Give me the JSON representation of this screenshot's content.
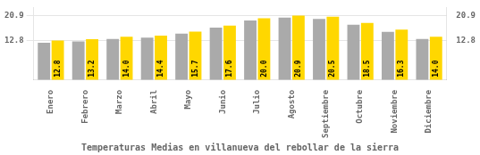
{
  "chart_data": {
    "type": "bar",
    "title": "Temperaturas Medias en villanueva del rebollar de la sierra",
    "categories": [
      "Enero",
      "Febrero",
      "Marzo",
      "Abril",
      "Mayo",
      "Junio",
      "Julio",
      "Agosto",
      "Septiembre",
      "Octubre",
      "Noviembre",
      "Diciembre"
    ],
    "series": [
      {
        "color": "#AAAAAA",
        "values": [
          12.1,
          12.5,
          13.3,
          13.7,
          15.0,
          17.0,
          19.3,
          20.2,
          19.8,
          17.9,
          15.6,
          13.3
        ]
      },
      {
        "color": "#FFD700",
        "values": [
          12.8,
          13.2,
          14.0,
          14.4,
          15.7,
          17.6,
          20.0,
          20.9,
          20.5,
          18.5,
          16.3,
          14.0
        ],
        "data_labels": true,
        "value_labels": [
          "12.8",
          "13.2",
          "14.0",
          "14.4",
          "15.7",
          "17.6",
          "20.0",
          "20.9",
          "20.5",
          "18.5",
          "16.3",
          "14.0"
        ]
      }
    ],
    "ylim": [
      0,
      23.5
    ],
    "yticks": [
      12.8,
      20.9
    ],
    "y2lim": [
      0,
      23.5
    ],
    "y2ticks": [
      12.8,
      20.9
    ],
    "grid": true
  }
}
